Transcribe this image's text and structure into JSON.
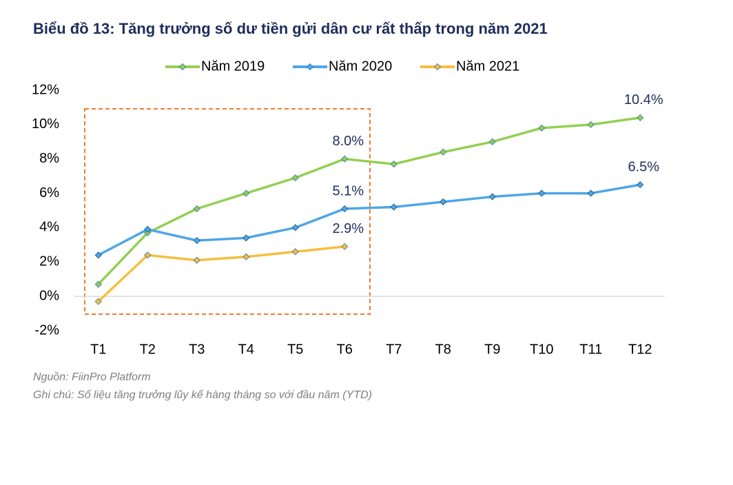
{
  "chart_data": {
    "type": "line",
    "title": "Biểu đồ 13: Tăng trưởng số dư tiền gửi dân cư rất thấp trong năm 2021",
    "categories": [
      "T1",
      "T2",
      "T3",
      "T4",
      "T5",
      "T6",
      "T7",
      "T8",
      "T9",
      "T10",
      "T11",
      "T12"
    ],
    "series": [
      {
        "name": "Năm 2019",
        "color": "#92d050",
        "values": [
          0.7,
          3.7,
          5.1,
          6.0,
          6.9,
          8.0,
          7.7,
          8.4,
          9.0,
          9.8,
          10.0,
          10.4
        ],
        "value_labels": [
          null,
          null,
          null,
          null,
          null,
          "8.0%",
          null,
          null,
          null,
          null,
          null,
          "10.4%"
        ]
      },
      {
        "name": "Năm 2020",
        "color": "#4ea6e6",
        "values": [
          2.4,
          3.9,
          3.25,
          3.4,
          4.0,
          5.1,
          5.2,
          5.5,
          5.8,
          6.0,
          6.0,
          6.5
        ],
        "value_labels": [
          null,
          null,
          null,
          null,
          null,
          "5.1%",
          null,
          null,
          null,
          null,
          null,
          "6.5%"
        ]
      },
      {
        "name": "Năm 2021",
        "color": "#f5bf3c",
        "values": [
          -0.3,
          2.4,
          2.1,
          2.3,
          2.6,
          2.9,
          null,
          null,
          null,
          null,
          null,
          null
        ],
        "value_labels": [
          null,
          null,
          null,
          null,
          null,
          "2.9%",
          null,
          null,
          null,
          null,
          null,
          null
        ]
      }
    ],
    "ylim": [
      -2,
      12
    ],
    "yticks": [
      {
        "value": -2,
        "label": "-2%"
      },
      {
        "value": 0,
        "label": "0%"
      },
      {
        "value": 2,
        "label": "2%"
      },
      {
        "value": 4,
        "label": "4%"
      },
      {
        "value": 6,
        "label": "6%"
      },
      {
        "value": 8,
        "label": "8%"
      },
      {
        "value": 10,
        "label": "10%"
      },
      {
        "value": 12,
        "label": "12%"
      }
    ],
    "legend": "top",
    "source": "Nguồn: FiinPro Platform",
    "note": "Ghi chú: Số liệu tăng trưởng lũy kế hàng tháng so với đầu năm (YTD)"
  }
}
